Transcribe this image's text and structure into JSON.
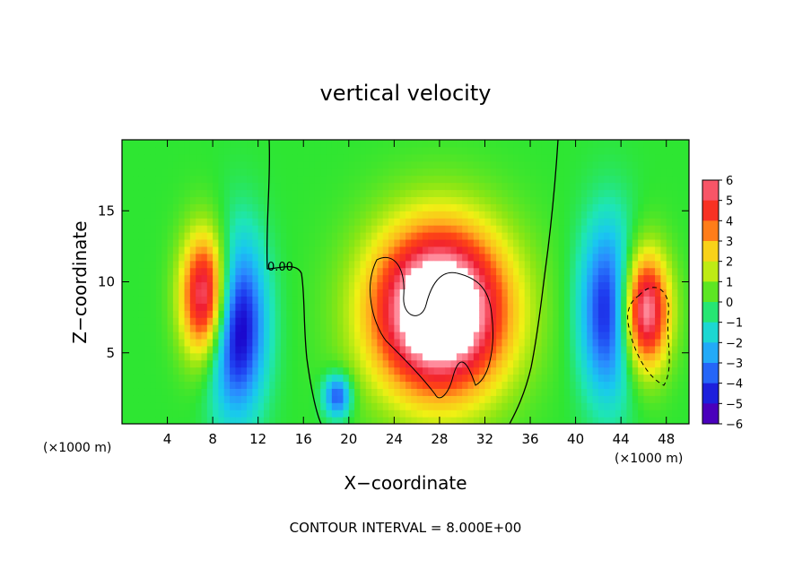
{
  "chart_data": {
    "type": "heatmap",
    "title": "vertical velocity",
    "xlabel": "X−coordinate",
    "ylabel": "Z−coordinate",
    "x_unit_left": "(×1000 m)",
    "x_unit_right": "(×1000 m)",
    "xlim": [
      0,
      50
    ],
    "ylim": [
      0,
      20
    ],
    "x_ticks": [
      4,
      8,
      12,
      16,
      20,
      24,
      28,
      32,
      36,
      40,
      44,
      48
    ],
    "y_ticks": [
      5,
      10,
      15
    ],
    "colorbar": {
      "ticks": [
        "6",
        "5",
        "4",
        "3",
        "2",
        "1",
        "0",
        "−1",
        "−2",
        "−3",
        "−4",
        "−5",
        "−6"
      ],
      "range": [
        -6,
        6
      ]
    },
    "contour_label": "0.00",
    "footer": "CONTOUR INTERVAL = 8.000E+00",
    "features": [
      {
        "kind": "updraft",
        "x": 28,
        "z": 8,
        "sx": 6,
        "sz": 6,
        "amp": 9
      },
      {
        "kind": "updraft",
        "x": 7.5,
        "z": 9,
        "sx": 2.2,
        "sz": 4.5,
        "amp": 7
      },
      {
        "kind": "updraft",
        "x": 46,
        "z": 8,
        "sx": 2.2,
        "sz": 4.2,
        "amp": 7
      },
      {
        "kind": "downdraft",
        "x": 10,
        "z": 7,
        "sx": 2.5,
        "sz": 6,
        "amp": -6
      },
      {
        "kind": "downdraft",
        "x": 43,
        "z": 8,
        "sx": 2.5,
        "sz": 6,
        "amp": -5
      },
      {
        "kind": "downdraft",
        "x": 19,
        "z": 2,
        "sx": 1.2,
        "sz": 1.5,
        "amp": -4
      }
    ]
  }
}
